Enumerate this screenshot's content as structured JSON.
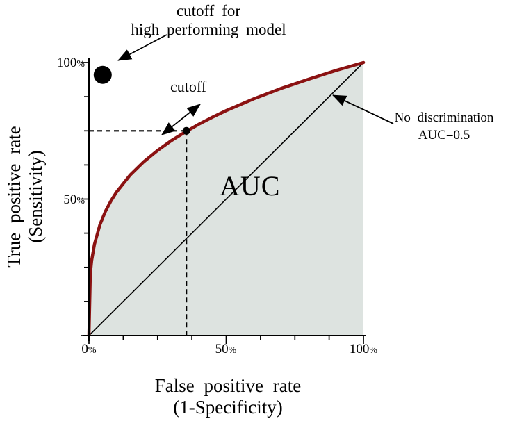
{
  "figure": {
    "background": "#ffffff"
  },
  "annotations": {
    "high_cutoff_label": {
      "line1": "cutoff for",
      "line2": "high performing model"
    },
    "cutoff_label": "cutoff",
    "auc_label": "AUC",
    "no_discrimination_label": {
      "line1": "No discrimination",
      "line2": "AUC=0.5"
    }
  },
  "axes": {
    "x": {
      "title_line1": "False positive rate",
      "title_line2": "(1-Specificity)",
      "ticks": [
        {
          "num": "0",
          "pct": "%"
        },
        {
          "num": "50",
          "pct": "%"
        },
        {
          "num": "100",
          "pct": "%"
        }
      ]
    },
    "y": {
      "title_line1": "True positive rate",
      "title_line2": "(Sensitivity)",
      "ticks": [
        {
          "num": "50",
          "pct": "%"
        },
        {
          "num": "100",
          "pct": "%"
        }
      ]
    }
  },
  "chart_data": {
    "type": "line",
    "title": "",
    "xlabel": "False positive rate (1-Specificity)",
    "ylabel": "True positive rate (Sensitivity)",
    "xlim": [
      0,
      1
    ],
    "ylim": [
      0,
      1
    ],
    "x_tick_values": [
      0,
      0.5,
      1.0
    ],
    "y_tick_values": [
      0.5,
      1.0
    ],
    "minor_tick_step": 0.125,
    "grid": false,
    "legend": false,
    "series": [
      {
        "name": "ROC curve",
        "color": "#8b1212",
        "fill_color": "#dde3e0",
        "points": [
          [
            0,
            0
          ],
          [
            0.005,
            0.227
          ],
          [
            0.01,
            0.275
          ],
          [
            0.02,
            0.334
          ],
          [
            0.04,
            0.406
          ],
          [
            0.06,
            0.455
          ],
          [
            0.08,
            0.493
          ],
          [
            0.1,
            0.525
          ],
          [
            0.15,
            0.588
          ],
          [
            0.2,
            0.637
          ],
          [
            0.25,
            0.678
          ],
          [
            0.3,
            0.714
          ],
          [
            0.35,
            0.745
          ],
          [
            0.4,
            0.774
          ],
          [
            0.45,
            0.8
          ],
          [
            0.5,
            0.824
          ],
          [
            0.6,
            0.867
          ],
          [
            0.7,
            0.905
          ],
          [
            0.8,
            0.939
          ],
          [
            0.9,
            0.971
          ],
          [
            1,
            1
          ]
        ]
      },
      {
        "name": "No discrimination line (AUC=0.5)",
        "color": "#000000",
        "points": [
          [
            0,
            0
          ],
          [
            1,
            1
          ]
        ]
      }
    ],
    "markers": [
      {
        "name": "cutoff point",
        "x": 0.355,
        "y": 0.75
      },
      {
        "name": "high performing model cutoff",
        "x": 0.05,
        "y": 0.955
      }
    ],
    "guide_lines": {
      "dashed_horizontal": {
        "from_x": 0,
        "to_x": 0.355,
        "at_y": 0.75
      },
      "dashed_vertical": {
        "at_x": 0.355,
        "from_y": 0,
        "to_y": 0.75
      }
    }
  }
}
